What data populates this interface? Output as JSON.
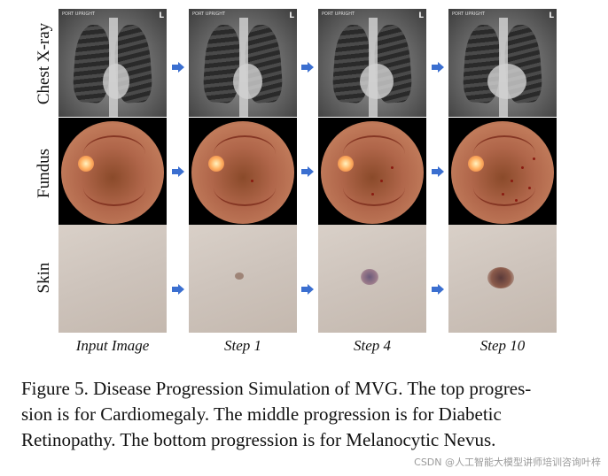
{
  "rows": [
    {
      "label": "Chest X-ray",
      "condition": "Cardiomegaly"
    },
    {
      "label": "Fundus",
      "condition": "Diabetic Retinopathy"
    },
    {
      "label": "Skin",
      "condition": "Melanocytic Nevus"
    }
  ],
  "columns": [
    "Input Image",
    "Step 1",
    "Step 4",
    "Step 10"
  ],
  "xray_tag": "PORT UPRIGHT",
  "xray_marker": "L",
  "caption_lines": [
    "Figure 5. Disease Progression Simulation of MVG. The top progres-",
    "sion is for Cardiomegaly. The middle progression is for Diabetic",
    "Retinopathy. The bottom progression is for Melanocytic Nevus."
  ],
  "credit": "CSDN @人工智能大模型讲师培训咨询叶梓",
  "colors": {
    "arrow": "#3b6fd0",
    "lesion": "#7a4a3a"
  }
}
